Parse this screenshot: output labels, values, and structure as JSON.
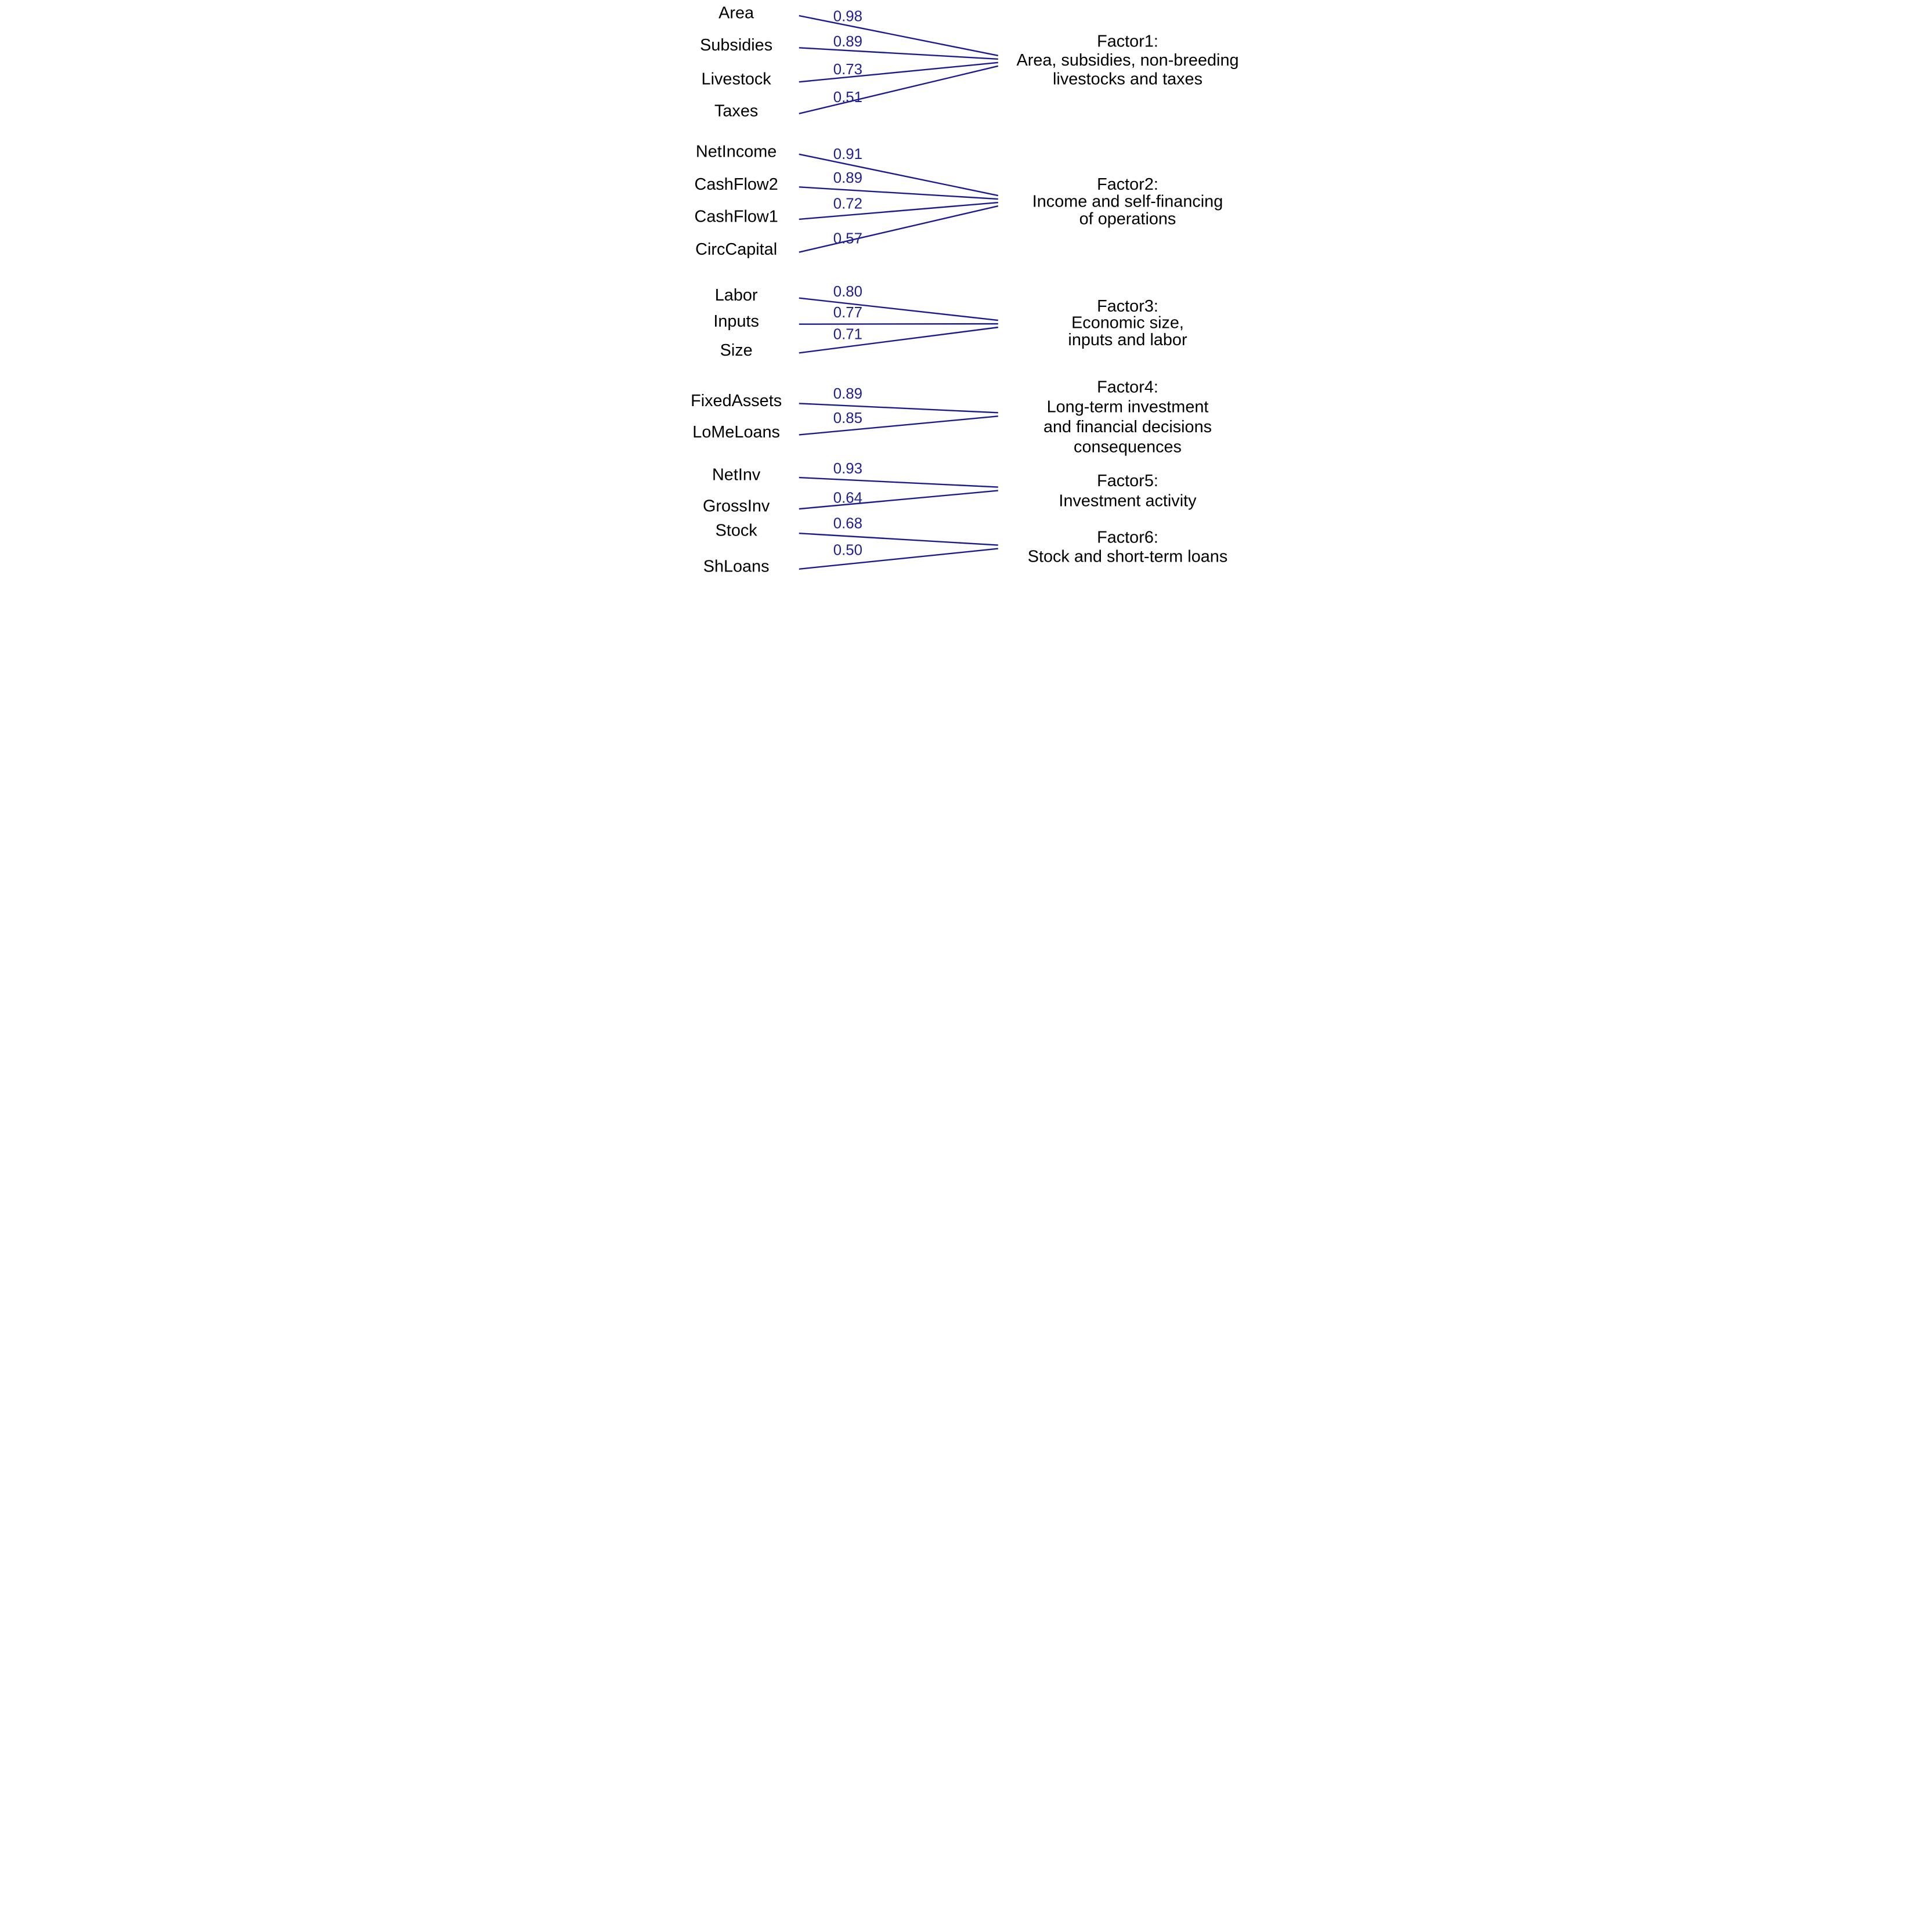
{
  "colors": {
    "background": "#ffffff",
    "connector": "#1b1b8e",
    "loading_text": "#21218f",
    "variable_text": "#000000",
    "factor_text": "#000000"
  },
  "groups": [
    {
      "variables": [
        "Area",
        "Subsidies",
        "Livestock",
        "Taxes"
      ],
      "loadings": [
        "0.98",
        "0.89",
        "0.73",
        "0.51"
      ],
      "factor_lines": [
        "Factor1:",
        "Area, subsidies, non-breeding",
        "livestocks and taxes"
      ]
    },
    {
      "variables": [
        "NetIncome",
        "CashFlow2",
        "CashFlow1",
        "CircCapital"
      ],
      "loadings": [
        "0.91",
        "0.89",
        "0.72",
        "0.57"
      ],
      "factor_lines": [
        "Factor2:",
        "Income and self-financing",
        "of operations"
      ]
    },
    {
      "variables": [
        "Labor",
        "Inputs",
        "Size"
      ],
      "loadings": [
        "0.80",
        "0.77",
        "0.71"
      ],
      "factor_lines": [
        "Factor3:",
        "Economic size,",
        "inputs and labor"
      ]
    },
    {
      "variables": [
        "FixedAssets",
        "LoMeLoans"
      ],
      "loadings": [
        "0.89",
        "0.85"
      ],
      "factor_lines": [
        "Factor4:",
        "Long-term investment",
        "and financial decisions",
        "consequences"
      ]
    },
    {
      "variables": [
        "NetInv",
        "GrossInv"
      ],
      "loadings": [
        "0.93",
        "0.64"
      ],
      "factor_lines": [
        "Factor5:",
        "Investment activity"
      ]
    },
    {
      "variables": [
        "Stock",
        "ShLoans"
      ],
      "loadings": [
        "0.68",
        "0.50"
      ],
      "factor_lines": [
        "Factor6:",
        "Stock and short-term loans"
      ]
    }
  ]
}
